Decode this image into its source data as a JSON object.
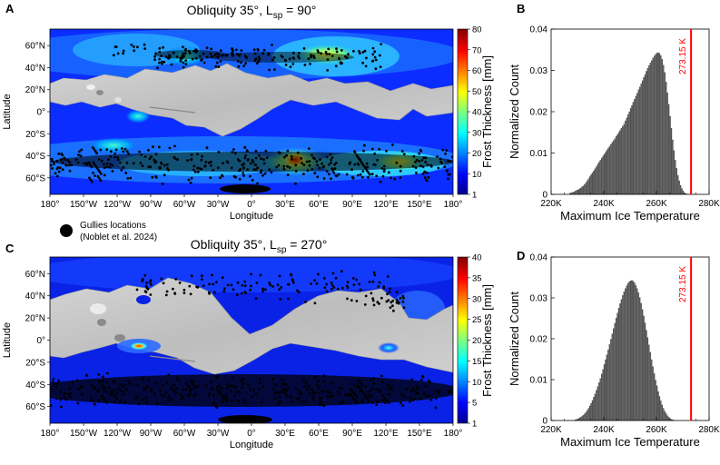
{
  "figure": {
    "panel_a_letter": "A",
    "panel_b_letter": "B",
    "panel_c_letter": "C",
    "panel_d_letter": "D",
    "legend_label_line1": "Gullies locations",
    "legend_label_line2": "(Noblet et al. 2024)"
  },
  "chart_data": [
    {
      "panel": "A",
      "type": "heatmap",
      "title_main": "Obliquity 35°, L",
      "title_sub": "sp",
      "title_tail": " = 90°",
      "xlabel": "Longitude",
      "ylabel": "Latitude",
      "x_ticks": [
        "180°",
        "150°W",
        "120°W",
        "90°W",
        "60°W",
        "30°W",
        "0°",
        "30°E",
        "60°E",
        "90°E",
        "120°E",
        "150°E",
        "180°"
      ],
      "y_ticks": [
        "60°N",
        "40°N",
        "20°N",
        "0°",
        "20°S",
        "40°S",
        "60°S"
      ],
      "y_tick_values": [
        60,
        40,
        20,
        0,
        -20,
        -40,
        -60
      ],
      "xlim": [
        -180,
        180
      ],
      "ylim": [
        -75,
        75
      ],
      "colorbar_label": "Frost Thickness [mm]",
      "colorbar_ticks": [
        "80",
        "70",
        "60",
        "50",
        "40",
        "30",
        "20",
        "10",
        "1"
      ],
      "colorbar_range": [
        1,
        80
      ],
      "hotspots": [
        {
          "lon": 40,
          "lat": -42,
          "value": 80
        },
        {
          "lon": 55,
          "lat": -45,
          "value": 40
        },
        {
          "lon": 130,
          "lat": -45,
          "value": 45
        },
        {
          "lon": 85,
          "lat": 50,
          "value": 40
        },
        {
          "lon": -110,
          "lat": -30,
          "value": 35
        },
        {
          "lon": -105,
          "lat": 5,
          "value": 20
        },
        {
          "lon": -95,
          "lat": 55,
          "value": 20
        }
      ]
    },
    {
      "panel": "B",
      "type": "bar",
      "xlabel": "Maximum Ice Temperature",
      "ylabel": "Normalized Count",
      "x_ticks": [
        "220K",
        "240K",
        "260K",
        "280K"
      ],
      "x_tick_values": [
        220,
        240,
        260,
        280
      ],
      "xlim": [
        220,
        280
      ],
      "y_ticks": [
        "0",
        "0.01",
        "0.02",
        "0.03",
        "0.04"
      ],
      "y_tick_values": [
        0,
        0.01,
        0.02,
        0.03,
        0.04
      ],
      "ylim": [
        0,
        0.04
      ],
      "reference_line_value": 273.15,
      "reference_line_label": "273.15 K",
      "reference_line_color": "#ff0000",
      "bar_color": "#555555",
      "bin_width": 0.5,
      "bin_start": 227,
      "values": [
        0.0003,
        0.0004,
        0.0005,
        0.0006,
        0.0008,
        0.001,
        0.0011,
        0.0013,
        0.0015,
        0.0018,
        0.002,
        0.0024,
        0.0028,
        0.0033,
        0.0038,
        0.0043,
        0.0048,
        0.0052,
        0.0057,
        0.0062,
        0.0067,
        0.0073,
        0.0078,
        0.0083,
        0.0088,
        0.0093,
        0.0097,
        0.0102,
        0.0107,
        0.0112,
        0.0116,
        0.0121,
        0.0126,
        0.013,
        0.0135,
        0.014,
        0.0145,
        0.015,
        0.0155,
        0.016,
        0.0165,
        0.017,
        0.0178,
        0.0185,
        0.0193,
        0.02,
        0.0208,
        0.0215,
        0.0223,
        0.023,
        0.0238,
        0.0245,
        0.0253,
        0.026,
        0.0268,
        0.0275,
        0.0283,
        0.029,
        0.0298,
        0.0305,
        0.0312,
        0.0318,
        0.0324,
        0.033,
        0.0335,
        0.0339,
        0.0342,
        0.0343,
        0.0341,
        0.0336,
        0.0327,
        0.0313,
        0.0295,
        0.0272,
        0.0246,
        0.0218,
        0.0189,
        0.016,
        0.0132,
        0.0106,
        0.0083,
        0.0063,
        0.0046,
        0.0033,
        0.0022,
        0.0014,
        0.0008,
        0.0004,
        0.0002,
        0.0001
      ]
    },
    {
      "panel": "C",
      "type": "heatmap",
      "title_main": "Obliquity 35°, L",
      "title_sub": "sp",
      "title_tail": " = 270°",
      "xlabel": "Longitude",
      "ylabel": "Latitude",
      "x_ticks": [
        "180°",
        "150°W",
        "120°W",
        "90°W",
        "60°W",
        "30°W",
        "0°",
        "30°E",
        "60°E",
        "90°E",
        "120°E",
        "150°E",
        "180°"
      ],
      "y_ticks": [
        "60°N",
        "40°N",
        "20°N",
        "0°",
        "20°S",
        "40°S",
        "60°S"
      ],
      "y_tick_values": [
        60,
        40,
        20,
        0,
        -20,
        -40,
        -60
      ],
      "xlim": [
        -180,
        180
      ],
      "ylim": [
        -75,
        75
      ],
      "colorbar_label": "Frost Thickness [mm]",
      "colorbar_ticks": [
        "40",
        "35",
        "30",
        "25",
        "20",
        "15",
        "10",
        "5",
        "1"
      ],
      "colorbar_range": [
        1,
        40
      ],
      "hotspots": [
        {
          "lon": -103,
          "lat": -5,
          "value": 35
        },
        {
          "lon": 123,
          "lat": -5,
          "value": 10
        },
        {
          "lon": 90,
          "lat": 60,
          "value": 8
        }
      ]
    },
    {
      "panel": "D",
      "type": "bar",
      "xlabel": "Maximum Ice Temperature",
      "ylabel": "Normalized Count",
      "x_ticks": [
        "220K",
        "240K",
        "260K",
        "280K"
      ],
      "x_tick_values": [
        220,
        240,
        260,
        280
      ],
      "xlim": [
        220,
        280
      ],
      "y_ticks": [
        "0",
        "0.01",
        "0.02",
        "0.03",
        "0.04"
      ],
      "y_tick_values": [
        0,
        0.01,
        0.02,
        0.03,
        0.04
      ],
      "ylim": [
        0,
        0.04
      ],
      "reference_line_value": 273.15,
      "reference_line_label": "273.15 K",
      "reference_line_color": "#ff0000",
      "bar_color": "#555555",
      "bin_width": 0.5,
      "bin_start": 229,
      "values": [
        0.0002,
        0.0003,
        0.0004,
        0.0006,
        0.0008,
        0.001,
        0.0013,
        0.0016,
        0.002,
        0.0025,
        0.003,
        0.0036,
        0.0042,
        0.0049,
        0.0057,
        0.0065,
        0.0074,
        0.0083,
        0.0093,
        0.0103,
        0.0114,
        0.0125,
        0.0137,
        0.0149,
        0.0161,
        0.0173,
        0.0186,
        0.0199,
        0.0212,
        0.0225,
        0.0238,
        0.0251,
        0.0263,
        0.0275,
        0.0286,
        0.0296,
        0.0306,
        0.0315,
        0.0323,
        0.033,
        0.0336,
        0.034,
        0.0342,
        0.0343,
        0.0341,
        0.0337,
        0.0331,
        0.0323,
        0.0313,
        0.0301,
        0.0287,
        0.0272,
        0.0256,
        0.0239,
        0.0221,
        0.0203,
        0.0185,
        0.0167,
        0.0149,
        0.0132,
        0.0115,
        0.0099,
        0.0085,
        0.0071,
        0.0059,
        0.0048,
        0.0038,
        0.003,
        0.0023,
        0.0017,
        0.0012,
        0.0008,
        0.0005,
        0.0003,
        0.0002,
        0.0001
      ]
    }
  ]
}
